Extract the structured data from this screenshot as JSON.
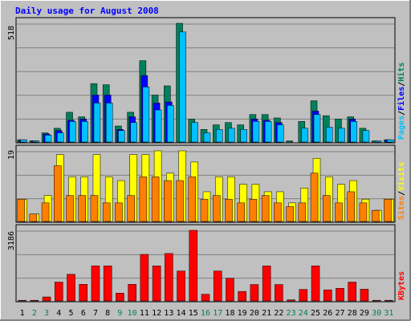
{
  "title": "Daily usage for August 2008",
  "colors": {
    "hits": "#00805c",
    "files": "#0000ff",
    "pages": "#00c0ff",
    "sites": "#ff8000",
    "visits": "#ffff00",
    "kbytes": "#ff0000",
    "title": "#0000ff",
    "weekend_day": "#00805c",
    "weekday": "#000000",
    "panel_bg": "#c0c0c0",
    "grid": "#808080"
  },
  "legends": {
    "top": [
      {
        "text": "Pages",
        "color": "#00c0ff"
      },
      {
        "text": "/",
        "color": "#000000"
      },
      {
        "text": "Files",
        "color": "#0000ff"
      },
      {
        "text": "/",
        "color": "#000000"
      },
      {
        "text": "Hits",
        "color": "#00805c"
      }
    ],
    "middle": [
      {
        "text": "Sites",
        "color": "#ff8000"
      },
      {
        "text": "/",
        "color": "#000000"
      },
      {
        "text": "Visits",
        "color": "#ffff00"
      }
    ],
    "bottom": [
      {
        "text": "KBytes",
        "color": "#ff0000"
      }
    ]
  },
  "chart_data": [
    {
      "type": "bar",
      "panel": "top",
      "ymax_label": "518",
      "ylim": [
        0,
        518
      ],
      "x": [
        "1",
        "2",
        "3",
        "4",
        "5",
        "6",
        "7",
        "8",
        "9",
        "10",
        "11",
        "12",
        "13",
        "14",
        "15",
        "16",
        "17",
        "18",
        "19",
        "20",
        "21",
        "22",
        "23",
        "24",
        "25",
        "26",
        "27",
        "28",
        "29",
        "30",
        "31"
      ],
      "series": [
        {
          "name": "Hits",
          "values": [
            10,
            5,
            40,
            60,
            130,
            110,
            255,
            250,
            70,
            130,
            355,
            205,
            245,
            518,
            100,
            55,
            75,
            85,
            75,
            120,
            120,
            105,
            5,
            90,
            180,
            115,
            100,
            110,
            60,
            5,
            10
          ]
        },
        {
          "name": "Files",
          "values": [
            10,
            5,
            35,
            50,
            95,
            100,
            205,
            205,
            55,
            110,
            290,
            170,
            175,
            0,
            0,
            0,
            0,
            0,
            0,
            100,
            95,
            85,
            0,
            0,
            135,
            0,
            0,
            100,
            0,
            0,
            10
          ]
        },
        {
          "name": "Pages",
          "values": [
            10,
            5,
            30,
            40,
            90,
            90,
            170,
            170,
            50,
            85,
            240,
            140,
            160,
            480,
            85,
            40,
            55,
            60,
            55,
            90,
            90,
            75,
            0,
            60,
            120,
            65,
            60,
            90,
            50,
            5,
            10
          ]
        }
      ]
    },
    {
      "type": "bar",
      "panel": "middle",
      "ymax_label": "19",
      "ylim": [
        0,
        19
      ],
      "x": [
        "1",
        "2",
        "3",
        "4",
        "5",
        "6",
        "7",
        "8",
        "9",
        "10",
        "11",
        "12",
        "13",
        "14",
        "15",
        "16",
        "17",
        "18",
        "19",
        "20",
        "21",
        "22",
        "23",
        "24",
        "25",
        "26",
        "27",
        "28",
        "29",
        "30",
        "31"
      ],
      "series": [
        {
          "name": "Visits",
          "values": [
            6,
            2,
            7,
            18,
            12,
            12,
            18,
            12,
            11,
            18,
            18,
            19,
            13,
            19,
            16,
            8,
            12,
            12,
            10,
            10,
            8,
            8,
            5,
            9,
            17,
            12,
            10,
            11,
            6,
            3,
            6
          ]
        },
        {
          "name": "Sites",
          "values": [
            6,
            2,
            5,
            15,
            7,
            7,
            7,
            5,
            5,
            7,
            12,
            12,
            11,
            11,
            12,
            6,
            7,
            6,
            5,
            6,
            7,
            5,
            4,
            5,
            13,
            7,
            5,
            8,
            5,
            3,
            6
          ]
        }
      ]
    },
    {
      "type": "bar",
      "panel": "bottom",
      "ymax_label": "3186",
      "ylim": [
        0,
        3186
      ],
      "x": [
        "1",
        "2",
        "3",
        "4",
        "5",
        "6",
        "7",
        "8",
        "9",
        "10",
        "11",
        "12",
        "13",
        "14",
        "15",
        "16",
        "17",
        "18",
        "19",
        "20",
        "21",
        "22",
        "23",
        "24",
        "25",
        "26",
        "27",
        "28",
        "29",
        "30",
        "31"
      ],
      "series": [
        {
          "name": "KBytes",
          "values": [
            30,
            30,
            180,
            850,
            1200,
            750,
            1580,
            1580,
            350,
            750,
            2100,
            1580,
            2140,
            1350,
            3186,
            300,
            1350,
            1020,
            430,
            740,
            1580,
            740,
            50,
            520,
            1580,
            500,
            570,
            850,
            530,
            30,
            30
          ]
        }
      ]
    }
  ],
  "x_labels": [
    {
      "text": "1",
      "weekend": false
    },
    {
      "text": "2",
      "weekend": true
    },
    {
      "text": "3",
      "weekend": true
    },
    {
      "text": "4",
      "weekend": false
    },
    {
      "text": "5",
      "weekend": false
    },
    {
      "text": "6",
      "weekend": false
    },
    {
      "text": "7",
      "weekend": false
    },
    {
      "text": "8",
      "weekend": false
    },
    {
      "text": "9",
      "weekend": true
    },
    {
      "text": "10",
      "weekend": true
    },
    {
      "text": "11",
      "weekend": false
    },
    {
      "text": "12",
      "weekend": false
    },
    {
      "text": "13",
      "weekend": false
    },
    {
      "text": "14",
      "weekend": false
    },
    {
      "text": "15",
      "weekend": false
    },
    {
      "text": "16",
      "weekend": true
    },
    {
      "text": "17",
      "weekend": true
    },
    {
      "text": "18",
      "weekend": false
    },
    {
      "text": "19",
      "weekend": false
    },
    {
      "text": "20",
      "weekend": false
    },
    {
      "text": "21",
      "weekend": false
    },
    {
      "text": "22",
      "weekend": false
    },
    {
      "text": "23",
      "weekend": true
    },
    {
      "text": "24",
      "weekend": true
    },
    {
      "text": "25",
      "weekend": false
    },
    {
      "text": "26",
      "weekend": false
    },
    {
      "text": "27",
      "weekend": false
    },
    {
      "text": "28",
      "weekend": false
    },
    {
      "text": "29",
      "weekend": false
    },
    {
      "text": "30",
      "weekend": true
    },
    {
      "text": "31",
      "weekend": true
    }
  ]
}
